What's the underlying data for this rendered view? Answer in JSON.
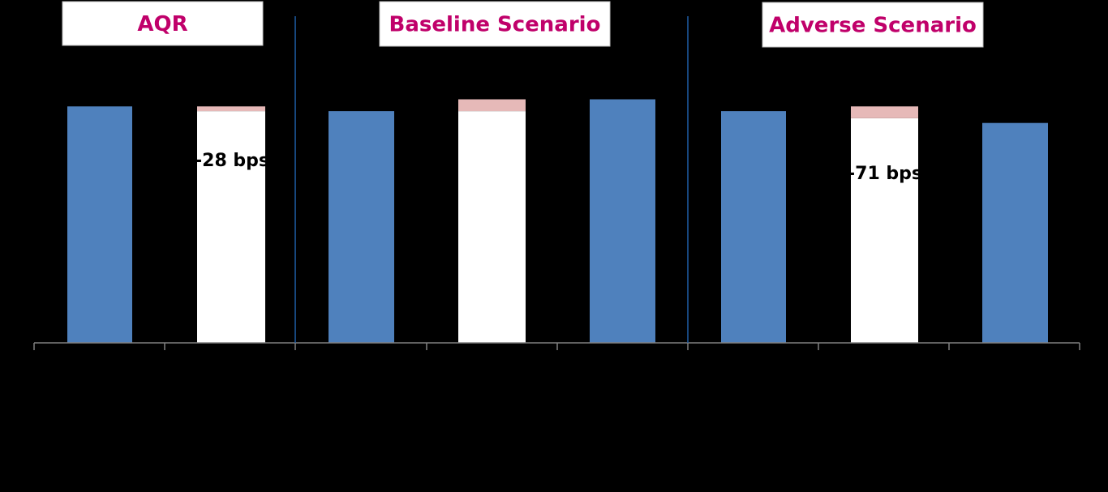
{
  "chart_data": {
    "type": "bar",
    "sections": [
      {
        "label": "AQR",
        "color": "#C0006A"
      },
      {
        "label": "Baseline Scenario",
        "color": "#C0006A"
      },
      {
        "label": "Adverse Scenario",
        "color": "#C0006A"
      }
    ],
    "bars": [
      {
        "kind": "level",
        "value": 100
      },
      {
        "kind": "change",
        "base": 98,
        "delta": 2,
        "label": "-28 bps"
      },
      {
        "kind": "level",
        "value": 98
      },
      {
        "kind": "change",
        "base": 98,
        "delta": 5,
        "label": ""
      },
      {
        "kind": "level",
        "value": 103
      },
      {
        "kind": "level",
        "value": 98
      },
      {
        "kind": "change",
        "base": 95,
        "delta": 5,
        "label": "-71 bps"
      },
      {
        "kind": "level",
        "value": 93
      }
    ],
    "ylim": [
      0,
      145
    ],
    "colors": {
      "level": "#4F81BD",
      "change_base": "#FFFFFF",
      "change_delta": "#E6B9B8",
      "axis": "#808080",
      "divider": "#1F5FA8",
      "label_box": "#FFFFFF"
    },
    "grid": false,
    "legend": "none"
  }
}
